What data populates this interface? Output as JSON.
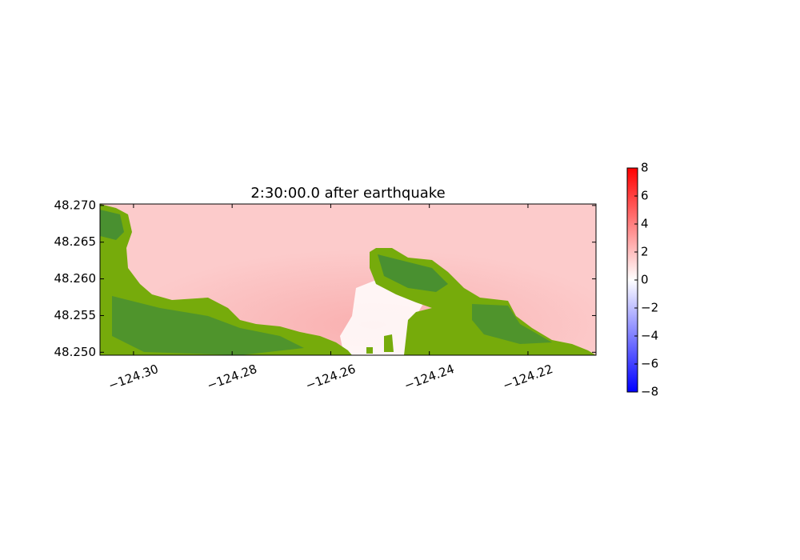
{
  "chart_data": {
    "type": "heatmap",
    "title": "2:30:00.0 after earthquake",
    "xlim": [
      -124.3068,
      -124.2062
    ],
    "ylim": [
      48.2496,
      48.2702
    ],
    "xticks": [
      {
        "value": -124.3,
        "label": "−124.30"
      },
      {
        "value": -124.28,
        "label": "−124.28"
      },
      {
        "value": -124.26,
        "label": "−124.26"
      },
      {
        "value": -124.24,
        "label": "−124.24"
      },
      {
        "value": -124.22,
        "label": "−124.22"
      }
    ],
    "yticks": [
      {
        "value": 48.25,
        "label": "48.250"
      },
      48.255,
      {
        "value": 48.26,
        "label": "48.260"
      },
      48.265,
      {
        "value": 48.27,
        "label": "48.270"
      }
    ],
    "colorbar": {
      "clim": [
        -8,
        8
      ],
      "colors": [
        "#0000ff",
        "#ffffff",
        "#ff0000"
      ],
      "ticks": [
        {
          "value": -8,
          "label": "−8"
        },
        {
          "value": -6,
          "label": "−6"
        },
        {
          "value": -4,
          "label": "−4"
        },
        {
          "value": -2,
          "label": "−2"
        },
        0,
        2,
        4,
        6,
        8
      ]
    }
  }
}
